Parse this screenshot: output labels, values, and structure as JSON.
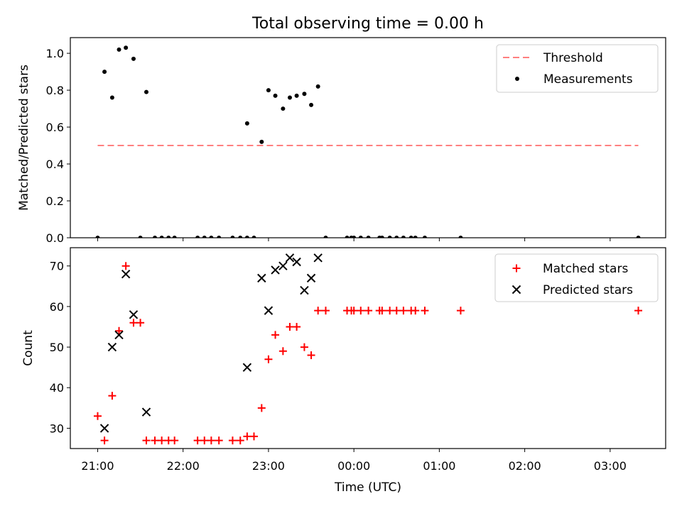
{
  "figure_title": "Total observing time = 0.00 h",
  "x_axis": {
    "label": "Time (UTC)",
    "unit_note": "hours since 21:00 UTC on the axis, crossing midnight",
    "tick_labels": [
      "21:00",
      "22:00",
      "23:00",
      "00:00",
      "01:00",
      "02:00",
      "03:00"
    ],
    "tick_positions_hours": [
      0,
      1,
      2,
      3,
      4,
      5,
      6
    ],
    "range_hours": [
      -0.32,
      6.65
    ]
  },
  "colors": {
    "threshold": "#ff7f7f",
    "measurements": "#000000",
    "matched": "#ff0000",
    "predicted": "#000000"
  },
  "chart_data": [
    {
      "type": "scatter",
      "name": "ratio-panel",
      "ylabel": "Matched/Predicted stars",
      "ylim": [
        0,
        1.085
      ],
      "ytick_labels": [
        "0.0",
        "0.2",
        "0.4",
        "0.6",
        "0.8",
        "1.0"
      ],
      "ytick_values": [
        0,
        0.2,
        0.4,
        0.6,
        0.8,
        1.0
      ],
      "legend_placement": "top-right",
      "threshold": {
        "name": "Threshold",
        "y": 0.5,
        "x_range_hours": [
          0,
          6.33
        ],
        "style": "dashed"
      },
      "series": [
        {
          "name": "Measurements",
          "points": [
            [
              0.0,
              0.0
            ],
            [
              0.08,
              0.9
            ],
            [
              0.17,
              0.76
            ],
            [
              0.25,
              1.02
            ],
            [
              0.33,
              1.03
            ],
            [
              0.42,
              0.97
            ],
            [
              0.5,
              0.0
            ],
            [
              0.57,
              0.79
            ],
            [
              0.67,
              0.0
            ],
            [
              0.75,
              0.0
            ],
            [
              0.83,
              0.0
            ],
            [
              0.9,
              0.0
            ],
            [
              1.17,
              0.0
            ],
            [
              1.25,
              0.0
            ],
            [
              1.33,
              0.0
            ],
            [
              1.42,
              0.0
            ],
            [
              1.58,
              0.0
            ],
            [
              1.67,
              0.0
            ],
            [
              1.75,
              0.0
            ],
            [
              1.75,
              0.62
            ],
            [
              1.83,
              0.0
            ],
            [
              1.92,
              0.52
            ],
            [
              2.0,
              0.8
            ],
            [
              2.08,
              0.77
            ],
            [
              2.17,
              0.7
            ],
            [
              2.25,
              0.76
            ],
            [
              2.33,
              0.77
            ],
            [
              2.42,
              0.78
            ],
            [
              2.5,
              0.72
            ],
            [
              2.58,
              0.82
            ],
            [
              2.67,
              0.0
            ],
            [
              2.92,
              0.0
            ],
            [
              2.97,
              0.0
            ],
            [
              3.0,
              0.0
            ],
            [
              3.08,
              0.0
            ],
            [
              3.17,
              0.0
            ],
            [
              3.3,
              0.0
            ],
            [
              3.33,
              0.0
            ],
            [
              3.42,
              0.0
            ],
            [
              3.5,
              0.0
            ],
            [
              3.58,
              0.0
            ],
            [
              3.67,
              0.0
            ],
            [
              3.72,
              0.0
            ],
            [
              3.83,
              0.0
            ],
            [
              4.25,
              0.0
            ],
            [
              6.33,
              0.0
            ]
          ]
        }
      ]
    },
    {
      "type": "scatter",
      "name": "count-panel",
      "ylabel": "Count",
      "ylim": [
        25,
        74.5
      ],
      "ytick_labels": [
        "30",
        "40",
        "50",
        "60",
        "70"
      ],
      "ytick_values": [
        30,
        40,
        50,
        60,
        70
      ],
      "legend_placement": "top-right",
      "series": [
        {
          "name": "Matched stars",
          "marker": "plus",
          "points": [
            [
              0.0,
              33
            ],
            [
              0.08,
              27
            ],
            [
              0.17,
              38
            ],
            [
              0.25,
              54
            ],
            [
              0.33,
              70
            ],
            [
              0.42,
              56
            ],
            [
              0.5,
              56
            ],
            [
              0.57,
              27
            ],
            [
              0.67,
              27
            ],
            [
              0.75,
              27
            ],
            [
              0.83,
              27
            ],
            [
              0.9,
              27
            ],
            [
              1.17,
              27
            ],
            [
              1.25,
              27
            ],
            [
              1.33,
              27
            ],
            [
              1.42,
              27
            ],
            [
              1.58,
              27
            ],
            [
              1.67,
              27
            ],
            [
              1.75,
              28
            ],
            [
              1.83,
              28
            ],
            [
              1.92,
              35
            ],
            [
              2.0,
              47
            ],
            [
              2.08,
              53
            ],
            [
              2.17,
              49
            ],
            [
              2.25,
              55
            ],
            [
              2.33,
              55
            ],
            [
              2.42,
              50
            ],
            [
              2.5,
              48
            ],
            [
              2.58,
              59
            ],
            [
              2.67,
              59
            ],
            [
              2.92,
              59
            ],
            [
              2.97,
              59
            ],
            [
              3.0,
              59
            ],
            [
              3.08,
              59
            ],
            [
              3.17,
              59
            ],
            [
              3.3,
              59
            ],
            [
              3.33,
              59
            ],
            [
              3.42,
              59
            ],
            [
              3.5,
              59
            ],
            [
              3.58,
              59
            ],
            [
              3.67,
              59
            ],
            [
              3.72,
              59
            ],
            [
              3.83,
              59
            ],
            [
              4.25,
              59
            ],
            [
              6.33,
              59
            ]
          ]
        },
        {
          "name": "Predicted stars",
          "marker": "x",
          "points": [
            [
              0.08,
              30
            ],
            [
              0.17,
              50
            ],
            [
              0.25,
              53
            ],
            [
              0.33,
              68
            ],
            [
              0.42,
              58
            ],
            [
              0.57,
              34
            ],
            [
              1.75,
              45
            ],
            [
              1.92,
              67
            ],
            [
              2.0,
              59
            ],
            [
              2.08,
              69
            ],
            [
              2.17,
              70
            ],
            [
              2.25,
              72
            ],
            [
              2.33,
              71
            ],
            [
              2.42,
              64
            ],
            [
              2.5,
              67
            ],
            [
              2.58,
              72
            ]
          ]
        }
      ]
    }
  ]
}
